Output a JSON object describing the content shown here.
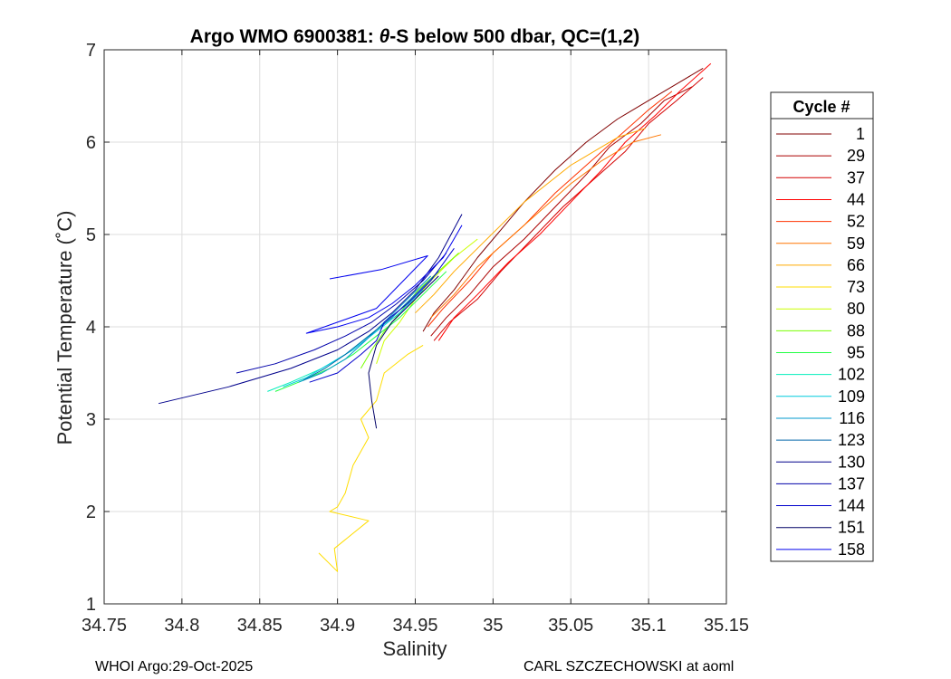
{
  "chart_data": {
    "type": "line",
    "title_prefix": "Argo WMO 6900381: ",
    "title_theta": "θ",
    "title_suffix": "-S below 500 dbar,  QC=(1,2)",
    "xlabel": "Salinity",
    "ylabel": "Potential Temperature (˚C)",
    "xlim": [
      34.75,
      35.15
    ],
    "ylim": [
      1,
      7
    ],
    "xticks": [
      34.75,
      34.8,
      34.85,
      34.9,
      34.95,
      35,
      35.05,
      35.1,
      35.15
    ],
    "xtick_labels": [
      "34.75",
      "34.8",
      "34.85",
      "34.9",
      "34.95",
      "35",
      "35.05",
      "35.1",
      "35.15"
    ],
    "yticks": [
      1,
      2,
      3,
      4,
      5,
      6,
      7
    ],
    "ytick_labels": [
      "1",
      "2",
      "3",
      "4",
      "5",
      "6",
      "7"
    ],
    "grid": true,
    "legend_title": "Cycle #",
    "legend_position": "outside-right",
    "series": [
      {
        "name": "1",
        "color": "#800000",
        "x": [
          34.955,
          34.962,
          34.975,
          34.99,
          35.005,
          35.02,
          35.04,
          35.06,
          35.08,
          35.1,
          35.12,
          35.135
        ],
        "y": [
          3.95,
          4.15,
          4.4,
          4.75,
          5.05,
          5.35,
          5.7,
          6.0,
          6.25,
          6.45,
          6.65,
          6.8
        ]
      },
      {
        "name": "29",
        "color": "#aa0000",
        "x": [
          34.96,
          34.97,
          34.985,
          35.0,
          35.02,
          35.04,
          35.06,
          35.075,
          35.095,
          35.11,
          35.128
        ],
        "y": [
          3.9,
          4.1,
          4.35,
          4.65,
          4.95,
          5.3,
          5.65,
          5.95,
          6.2,
          6.45,
          6.6
        ]
      },
      {
        "name": "37",
        "color": "#d40000",
        "x": [
          34.962,
          34.972,
          34.99,
          35.005,
          35.025,
          35.045,
          35.065,
          35.085,
          35.1,
          35.118,
          35.135
        ],
        "y": [
          3.85,
          4.05,
          4.3,
          4.6,
          4.95,
          5.3,
          5.6,
          5.9,
          6.2,
          6.45,
          6.7
        ]
      },
      {
        "name": "44",
        "color": "#ff0000",
        "x": [
          34.965,
          34.975,
          34.99,
          35.01,
          35.03,
          35.05,
          35.07,
          35.085,
          35.105,
          35.12,
          35.14
        ],
        "y": [
          3.85,
          4.1,
          4.35,
          4.7,
          5.0,
          5.35,
          5.7,
          6.0,
          6.3,
          6.55,
          6.85
        ]
      },
      {
        "name": "52",
        "color": "#ff3300",
        "x": [
          34.958,
          34.968,
          34.985,
          35.0,
          35.02,
          35.04,
          35.06,
          35.08,
          35.1,
          35.115
        ],
        "y": [
          4.0,
          4.2,
          4.5,
          4.8,
          5.1,
          5.45,
          5.75,
          6.05,
          6.35,
          6.55
        ]
      },
      {
        "name": "59",
        "color": "#ff7700",
        "x": [
          34.96,
          34.975,
          34.99,
          35.01,
          35.03,
          35.05,
          35.07,
          35.09,
          35.108
        ],
        "y": [
          4.1,
          4.35,
          4.65,
          4.95,
          5.25,
          5.55,
          5.8,
          6.0,
          6.08
        ]
      },
      {
        "name": "66",
        "color": "#ffaa00",
        "x": [
          34.95,
          34.962,
          34.975,
          34.99,
          35.005,
          35.02,
          35.035,
          35.05,
          35.065,
          35.08,
          35.098
        ],
        "y": [
          4.15,
          4.35,
          4.6,
          4.85,
          5.1,
          5.35,
          5.55,
          5.75,
          5.9,
          6.05,
          6.15
        ]
      },
      {
        "name": "73",
        "color": "#ffdd00",
        "x": [
          34.955,
          34.945,
          34.93,
          34.925,
          34.915,
          34.92,
          34.91,
          34.905,
          34.9,
          34.895,
          34.92,
          34.898,
          34.9,
          34.888
        ],
        "y": [
          3.8,
          3.7,
          3.5,
          3.2,
          3.0,
          2.8,
          2.5,
          2.2,
          2.05,
          2.0,
          1.9,
          1.6,
          1.35,
          1.55
        ]
      },
      {
        "name": "80",
        "color": "#ccff00",
        "x": [
          34.925,
          34.93,
          34.94,
          34.95,
          34.96,
          34.975,
          34.99
        ],
        "y": [
          3.6,
          3.85,
          4.05,
          4.3,
          4.5,
          4.75,
          4.95
        ]
      },
      {
        "name": "88",
        "color": "#77ff00",
        "x": [
          34.915,
          34.922,
          34.93,
          34.94,
          34.952,
          34.965,
          34.978
        ],
        "y": [
          3.55,
          3.75,
          3.95,
          4.15,
          4.4,
          4.6,
          4.8
        ]
      },
      {
        "name": "95",
        "color": "#22ff44",
        "x": [
          34.86,
          34.875,
          34.895,
          34.91,
          34.925,
          34.94,
          34.955,
          34.97
        ],
        "y": [
          3.3,
          3.4,
          3.55,
          3.7,
          3.9,
          4.1,
          4.35,
          4.6
        ]
      },
      {
        "name": "102",
        "color": "#00eebb",
        "x": [
          34.855,
          34.87,
          34.89,
          34.905,
          34.92,
          34.935,
          34.95
        ],
        "y": [
          3.3,
          3.4,
          3.55,
          3.7,
          3.9,
          4.1,
          4.35
        ]
      },
      {
        "name": "109",
        "color": "#00ccdd",
        "x": [
          34.865,
          34.88,
          34.895,
          34.91,
          34.925,
          34.94,
          34.955
        ],
        "y": [
          3.35,
          3.45,
          3.6,
          3.75,
          3.95,
          4.15,
          4.4
        ]
      },
      {
        "name": "116",
        "color": "#0099cc",
        "x": [
          34.875,
          34.89,
          34.905,
          34.918,
          34.93,
          34.945,
          34.96
        ],
        "y": [
          3.4,
          3.5,
          3.65,
          3.85,
          4.05,
          4.3,
          4.55
        ]
      },
      {
        "name": "123",
        "color": "#0066aa",
        "x": [
          34.878,
          34.892,
          34.905,
          34.92,
          34.935,
          34.95,
          34.965
        ],
        "y": [
          3.42,
          3.55,
          3.7,
          3.9,
          4.1,
          4.35,
          4.6
        ]
      },
      {
        "name": "130",
        "color": "#00008b",
        "x": [
          34.785,
          34.83,
          34.87,
          34.9,
          34.92,
          34.935,
          34.95,
          34.965,
          34.98
        ],
        "y": [
          3.17,
          3.35,
          3.55,
          3.75,
          3.95,
          4.15,
          4.4,
          4.75,
          5.22
        ]
      },
      {
        "name": "137",
        "color": "#0000aa",
        "x": [
          34.835,
          34.86,
          34.885,
          34.905,
          34.922,
          34.938,
          34.955,
          34.97
        ],
        "y": [
          3.5,
          3.6,
          3.75,
          3.9,
          4.05,
          4.25,
          4.5,
          4.8
        ]
      },
      {
        "name": "144",
        "color": "#0000cc",
        "x": [
          34.882,
          34.9,
          34.915,
          34.925,
          34.93,
          34.945,
          34.96,
          34.975
        ],
        "y": [
          3.4,
          3.5,
          3.7,
          3.85,
          4.05,
          4.25,
          4.5,
          4.85
        ]
      },
      {
        "name": "151",
        "color": "#000066",
        "x": [
          34.925,
          34.922,
          34.92,
          34.925,
          34.935,
          34.95,
          34.965
        ],
        "y": [
          2.9,
          3.2,
          3.5,
          3.8,
          4.05,
          4.3,
          4.55
        ]
      },
      {
        "name": "158",
        "color": "#0000ee",
        "x": [
          34.895,
          34.928,
          34.958,
          34.925,
          34.88,
          34.9,
          34.92,
          34.935,
          34.95,
          34.968,
          34.98
        ],
        "y": [
          4.52,
          4.62,
          4.77,
          4.2,
          3.93,
          4.0,
          4.1,
          4.25,
          4.45,
          4.75,
          5.1
        ]
      }
    ]
  },
  "footer": {
    "left": "WHOI Argo:29-Oct-2025",
    "right": "CARL SZCZECHOWSKI at aoml"
  }
}
